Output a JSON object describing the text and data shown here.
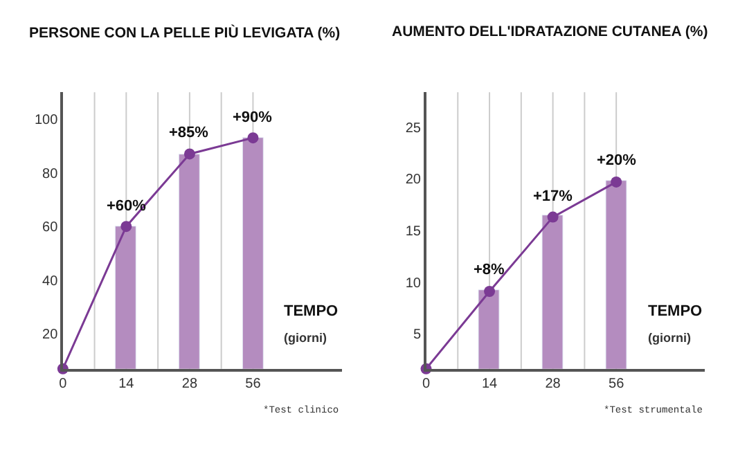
{
  "chart_data": [
    {
      "type": "bar",
      "title": "PERSONE CON LA PELLE PIÙ LEVIGATA (%)",
      "categories": [
        "0",
        "14",
        "28",
        "56"
      ],
      "ylim": [
        7,
        110
      ],
      "yticks": [
        20,
        40,
        60,
        80,
        100
      ],
      "grid": "x",
      "series": [
        {
          "color": "#b48cbf",
          "values": [
            null,
            60,
            87,
            93
          ]
        },
        {
          "type": "line",
          "color": "#7b3a94",
          "values": [
            7,
            60,
            87,
            93
          ],
          "marker": "circle"
        }
      ],
      "annotations": [
        "TEMPO",
        "(giorni)",
        "*Test clinico",
        {
          "text": "+60%",
          "x": "14",
          "y": 60
        },
        {
          "text": "+85%",
          "x": "28",
          "y": 87
        },
        {
          "text": "+90%",
          "x": "56",
          "y": 93
        }
      ]
    },
    {
      "type": "bar",
      "title": "AUMENTO DELL'IDRATAZIONE CUTANEA (%)",
      "categories": [
        "0",
        "14",
        "28",
        "56"
      ],
      "ylim": [
        1.6,
        28.4
      ],
      "yticks": [
        5,
        10,
        15,
        20,
        25
      ],
      "grid": "x",
      "series": [
        {
          "color": "#b48cbf",
          "values": [
            null,
            9.2,
            16.4,
            19.8
          ]
        },
        {
          "type": "line",
          "color": "#7b3a94",
          "values": [
            1.6,
            9.1,
            16.3,
            19.7
          ],
          "marker": "circle"
        }
      ],
      "annotations": [
        "TEMPO",
        "(giorni)",
        "*Test strumentale",
        {
          "text": "+8%",
          "x": "14",
          "y": 9.1
        },
        {
          "text": "+17%",
          "x": "28",
          "y": 16.3
        },
        {
          "text": "+20%",
          "x": "56",
          "y": 19.7
        }
      ]
    }
  ]
}
